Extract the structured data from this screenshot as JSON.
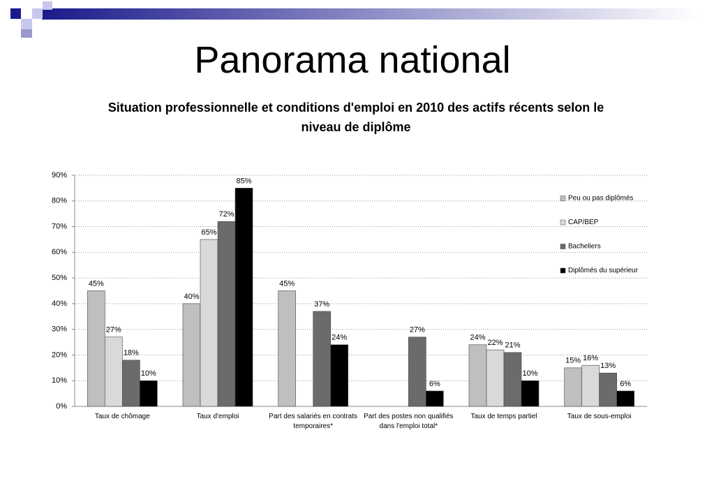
{
  "slide_title": "Panorama national",
  "chart_data": {
    "type": "bar",
    "title": "Situation professionnelle et conditions d'emploi en 2010 des actifs récents selon le niveau de diplôme",
    "categories": [
      "Taux de chômage",
      "Taux d'emploi",
      "Part des salariés en contrats temporaires*",
      "Part des postes non qualifiés dans l'emploi total*",
      "Taux de temps partiel",
      "Taux de sous-emploi"
    ],
    "series": [
      {
        "name": "Peu ou pas diplômés",
        "color": "#bfbfbf",
        "values": [
          45,
          40,
          45,
          null,
          24,
          15
        ],
        "value_labels": [
          "45%",
          "40%",
          "45%",
          null,
          "24%",
          "15%"
        ]
      },
      {
        "name": "CAP/BEP",
        "color": "#d9d9d9",
        "values": [
          27,
          65,
          null,
          null,
          22,
          16
        ],
        "value_labels": [
          "27%",
          "65%",
          null,
          null,
          "22%",
          "16%"
        ]
      },
      {
        "name": "Bacheliers",
        "color": "#6b6b6b",
        "values": [
          18,
          72,
          37,
          27,
          21,
          13
        ],
        "value_labels": [
          "18%",
          "72%",
          "37%",
          "27%",
          "21%",
          "13%"
        ]
      },
      {
        "name": "Diplômés du supérieur",
        "color": "#000000",
        "values": [
          10,
          85,
          24,
          6,
          10,
          6
        ],
        "value_labels": [
          "10%",
          "85%",
          "24%",
          "6%",
          "10%",
          "6%"
        ]
      }
    ],
    "ylim": [
      0,
      90
    ],
    "yticks": [
      {
        "value": 0,
        "label": "0%"
      },
      {
        "value": 10,
        "label": "10%"
      },
      {
        "value": 20,
        "label": "20%"
      },
      {
        "value": 30,
        "label": "30%"
      },
      {
        "value": 40,
        "label": "40%"
      },
      {
        "value": 50,
        "label": "50%"
      },
      {
        "value": 60,
        "label": "60%"
      },
      {
        "value": 70,
        "label": "70%"
      },
      {
        "value": 80,
        "label": "80%"
      },
      {
        "value": 90,
        "label": "90%"
      }
    ],
    "grid": true,
    "legend": "right"
  }
}
